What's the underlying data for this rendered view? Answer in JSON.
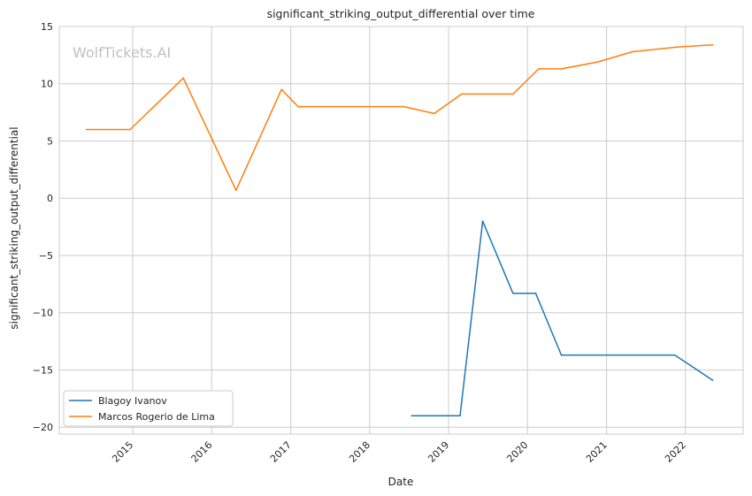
{
  "chart_data": {
    "type": "line",
    "title": "significant_striking_output_differential over time",
    "xlabel": "Date",
    "ylabel": "significant_striking_output_differential",
    "watermark": "WolfTickets.AI",
    "x_ticks": [
      "2015",
      "2016",
      "2017",
      "2018",
      "2019",
      "2020",
      "2021",
      "2022"
    ],
    "y_ticks": [
      -20,
      -15,
      -10,
      -5,
      0,
      5,
      10,
      15
    ],
    "ylim": [
      -20.6,
      15
    ],
    "xlim": [
      "2014-01-26",
      "2022-09-25"
    ],
    "grid": true,
    "legend_position": "lower-left",
    "series": [
      {
        "name": "Blagoy Ivanov",
        "color": "#1f77b4",
        "points": [
          [
            "2018-07-14",
            -19.0
          ],
          [
            "2019-02-23",
            -19.0
          ],
          [
            "2019-06-08",
            -2.0
          ],
          [
            "2019-10-26",
            -8.3
          ],
          [
            "2020-02-08",
            -8.3
          ],
          [
            "2020-06-06",
            -13.7
          ],
          [
            "2021-11-13",
            -13.7
          ],
          [
            "2022-05-07",
            -15.9
          ]
        ]
      },
      {
        "name": "Marcos Rogerio de Lima",
        "color": "#ff7f0e",
        "points": [
          [
            "2014-05-31",
            6.0
          ],
          [
            "2014-12-20",
            6.0
          ],
          [
            "2015-08-23",
            10.5
          ],
          [
            "2016-04-23",
            0.7
          ],
          [
            "2016-11-19",
            9.5
          ],
          [
            "2017-02-04",
            8.0
          ],
          [
            "2018-06-09",
            8.0
          ],
          [
            "2018-10-27",
            7.4
          ],
          [
            "2019-03-02",
            9.1
          ],
          [
            "2019-10-26",
            9.1
          ],
          [
            "2020-02-22",
            11.3
          ],
          [
            "2020-06-06",
            11.3
          ],
          [
            "2020-11-21",
            11.9
          ],
          [
            "2021-05-01",
            12.8
          ],
          [
            "2021-11-20",
            13.2
          ],
          [
            "2022-05-07",
            13.4
          ]
        ]
      }
    ]
  }
}
